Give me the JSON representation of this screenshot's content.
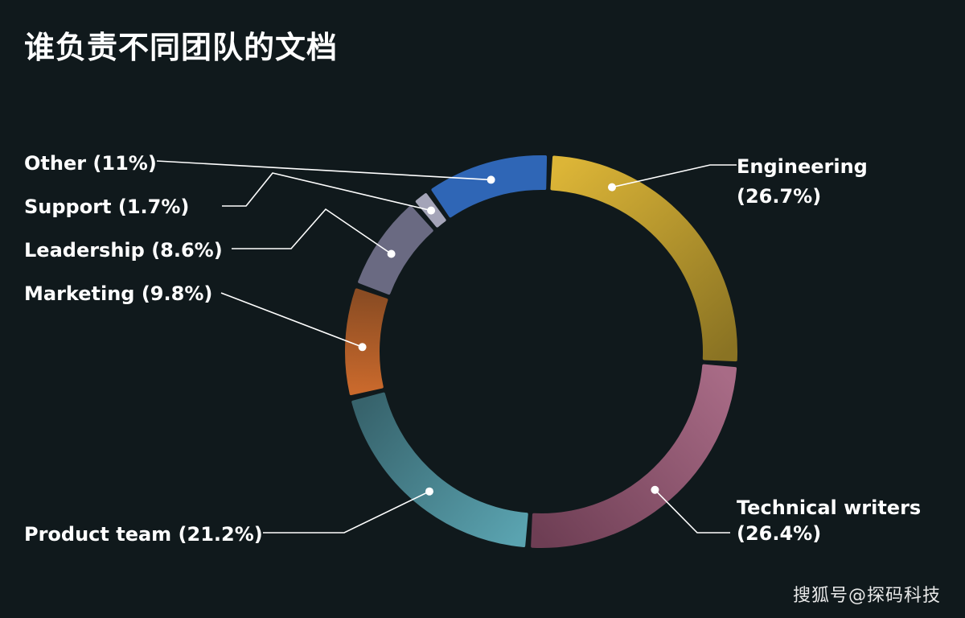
{
  "title": "谁负责不同团队的文档",
  "watermark": "搜狐号@探码科技",
  "chart_data": {
    "type": "pie",
    "style": "donut",
    "title": "谁负责不同团队的文档",
    "legend": "callout-labels",
    "series": [
      {
        "name": "Engineering",
        "value": 26.7,
        "label_lines": [
          "Engineering",
          "(26.7%)"
        ],
        "color": "#dcb537",
        "color_end": "#8a7323"
      },
      {
        "name": "Technical writers",
        "value": 26.4,
        "label_lines": [
          "Technical writers",
          "(26.4%)"
        ],
        "color": "#a86b86",
        "color_end": "#6e3e54"
      },
      {
        "name": "Product team",
        "value": 21.2,
        "label_lines": [
          "Product team (21.2%)"
        ],
        "color": "#5aa3b0",
        "color_end": "#37636c"
      },
      {
        "name": "Marketing",
        "value": 9.8,
        "label_lines": [
          "Marketing (9.8%)"
        ],
        "color": "#c9692c",
        "color_end": "#8a4c23"
      },
      {
        "name": "Leadership",
        "value": 8.6,
        "label_lines": [
          "Leadership (8.6%)"
        ],
        "color": "#6a6a82",
        "color_end": "#6a6a82"
      },
      {
        "name": "Support",
        "value": 1.7,
        "label_lines": [
          "Support (1.7%)"
        ],
        "color": "#a4a4b8",
        "color_end": "#a4a4b8"
      },
      {
        "name": "Other",
        "value": 11,
        "label_lines": [
          "Other (11%)"
        ],
        "color": "#2f66b6",
        "color_end": "#2f66b6"
      }
    ]
  }
}
